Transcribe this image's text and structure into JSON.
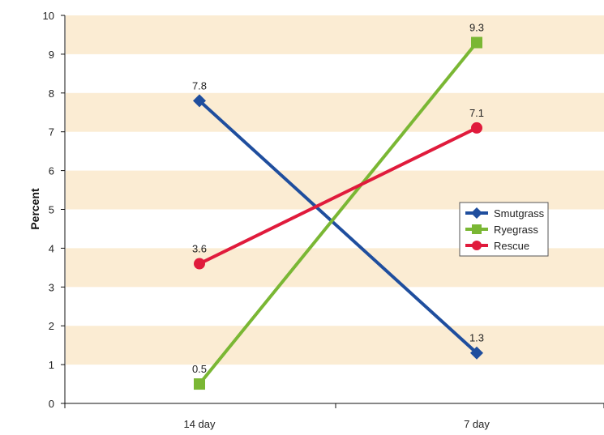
{
  "chart_data": {
    "type": "line",
    "categories": [
      "14 day",
      "7 day"
    ],
    "series": [
      {
        "name": "Smutgrass",
        "values": [
          7.8,
          1.3
        ],
        "color": "#1f4e9e",
        "marker": "diamond"
      },
      {
        "name": "Ryegrass",
        "values": [
          0.5,
          9.3
        ],
        "color": "#7ab734",
        "marker": "square"
      },
      {
        "name": "Rescue",
        "values": [
          3.6,
          7.1
        ],
        "color": "#e01b3c",
        "marker": "circle"
      }
    ],
    "data_labels": [
      [
        "7.8",
        "1.3"
      ],
      [
        "0.5",
        "9.3"
      ],
      [
        "3.6",
        "7.1"
      ]
    ],
    "title": "",
    "xlabel": "",
    "ylabel": "Percent",
    "ylim": [
      0,
      10
    ],
    "yticks": [
      "0",
      "1",
      "2",
      "3",
      "4",
      "5",
      "6",
      "7",
      "8",
      "9",
      "10"
    ],
    "grid": "alternating horizontal bands",
    "band_color": "#fbecd3",
    "legend_position": "right"
  }
}
